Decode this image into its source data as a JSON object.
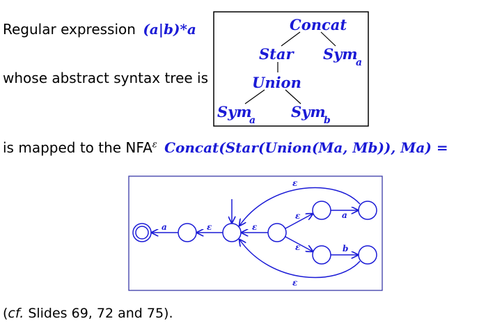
{
  "line1": {
    "text": "Regular expression",
    "regex": "(a|b)*a"
  },
  "line2": {
    "text": "whose abstract syntax tree is"
  },
  "line3": {
    "text_before": "is mapped to the NFA",
    "eps_sup": "ε",
    "formula": "Concat(Star(Union(Ma, Mb)), Ma) ="
  },
  "footnote": {
    "cf": "cf.",
    "rest": "Slides 69, 72 and 75)."
  },
  "ast": {
    "concat": "Concat",
    "star": "Star",
    "union": "Union",
    "sym_a_top": "Sym",
    "sym_a_top_sub": "a",
    "sym_a_left": "Sym",
    "sym_a_left_sub": "a",
    "sym_b": "Sym",
    "sym_b_sub": "b"
  },
  "nfa": {
    "label_a_left": "a",
    "label_eps_1": "ε",
    "label_eps_2": "ε",
    "label_eps_up": "ε",
    "label_eps_down": "ε",
    "label_a_right": "a",
    "label_b_right": "b",
    "label_eps_top": "ε",
    "label_eps_bottom": "ε"
  },
  "colors": {
    "math_blue": "#1a1ad6",
    "frame_blue": "#3a3aa8"
  }
}
